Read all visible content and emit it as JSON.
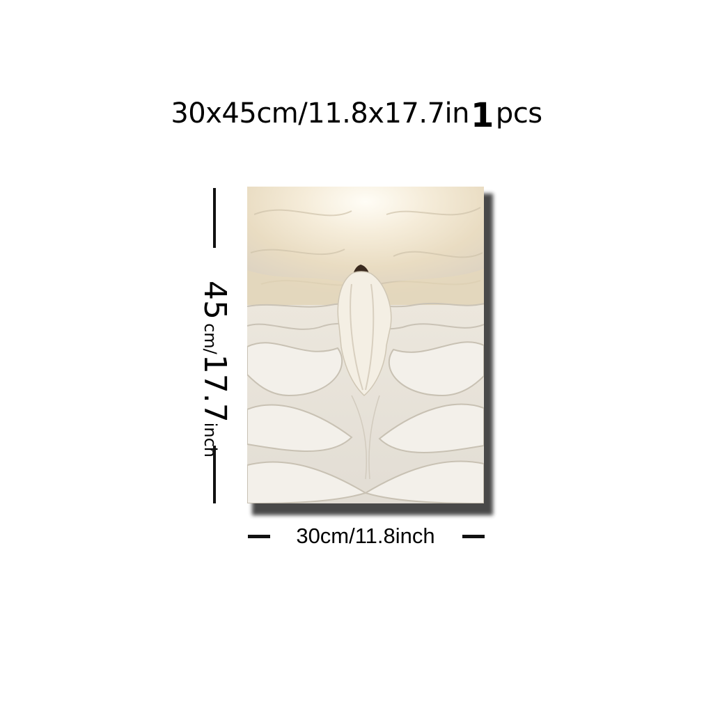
{
  "title": {
    "size": "30x45cm/11.8x17.7in",
    "count": "1",
    "unit": "pcs"
  },
  "height_label": {
    "value": "45",
    "unit": "cm/",
    "inch_value": "17.7",
    "inch_unit": "inch"
  },
  "width_label": "30cm/11.8inch",
  "artwork": {
    "subject": "robed-figure-walking-on-waves-icon",
    "palette": [
      "#f6efe0",
      "#e9e3d8",
      "#d8cfbf",
      "#3a2a1e"
    ]
  }
}
